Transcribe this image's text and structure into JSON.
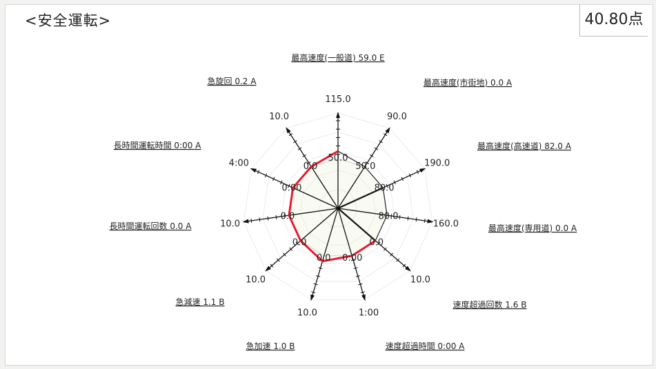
{
  "header": {
    "title": "<安全運転>",
    "score": "40.80点"
  },
  "chart_data": {
    "type": "radar",
    "colors": {
      "series": "#e8192c",
      "axis": "#111111",
      "web": "#e6e6e6",
      "fill": "#f9faf1"
    },
    "axes": [
      {
        "label": "最高速度(一般道) 59.0 E",
        "name": "最高速度(一般道)",
        "value": "59.0",
        "grade": "E",
        "max": "115.0",
        "inner": "50.0"
      },
      {
        "label": "最高速度(市街地) 0.0 A",
        "name": "最高速度(市街地)",
        "value": "0.0",
        "grade": "A",
        "max": "90.0",
        "inner": "50.0"
      },
      {
        "label": "最高速度(高速道) 82.0 A",
        "name": "最高速度(高速道)",
        "value": "82.0",
        "grade": "A",
        "max": "190.0",
        "inner": "80.0"
      },
      {
        "label": "最高速度(専用道) 0.0 A",
        "name": "最高速度(専用道)",
        "value": "0.0",
        "grade": "A",
        "max": "160.0",
        "inner": "80.0"
      },
      {
        "label": "速度超過回数 1.6 B",
        "name": "速度超過回数",
        "value": "1.6",
        "grade": "B",
        "max": "10.0",
        "inner": "0.0"
      },
      {
        "label": "速度超過時間 0:00 A",
        "name": "速度超過時間",
        "value": "0:00",
        "grade": "A",
        "max": "1:00",
        "inner": "0:00"
      },
      {
        "label": "急加速 1.0 B",
        "name": "急加速",
        "value": "1.0",
        "grade": "B",
        "max": "10.0",
        "inner": "0.0"
      },
      {
        "label": "急減速 1.1 B",
        "name": "急減速",
        "value": "1.1",
        "grade": "B",
        "max": "10.0",
        "inner": "0.0"
      },
      {
        "label": "長時間運転回数 0.0 A",
        "name": "長時間運転回数",
        "value": "0.0",
        "grade": "A",
        "max": "10.0",
        "inner": "0.0"
      },
      {
        "label": "長時間運転時間 0:00 A",
        "name": "長時間運転時間",
        "value": "0:00",
        "grade": "A",
        "max": "4:00",
        "inner": "0.00"
      },
      {
        "label": "急旋回 0.2 A",
        "name": "急旋回",
        "value": "0.2",
        "grade": "A",
        "max": "10.0",
        "inner": "0.0"
      }
    ],
    "scores": [
      0.6,
      0.52,
      0.52,
      0.52,
      0.52,
      0.52,
      0.58,
      0.52,
      0.52,
      0.52,
      0.52
    ],
    "baseline": 0.52,
    "rings": 5
  }
}
